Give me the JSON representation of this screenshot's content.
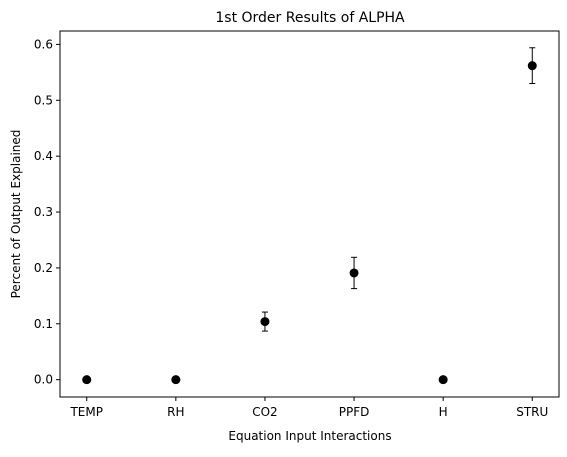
{
  "chart_data": {
    "type": "scatter",
    "title": "1st Order Results of ALPHA",
    "xlabel": "Equation Input Interactions",
    "ylabel": "Percent of Output Explained",
    "categories": [
      "TEMP",
      "RH",
      "CO2",
      "PPFD",
      "H",
      "STRU"
    ],
    "values": [
      0.0,
      0.0,
      0.104,
      0.191,
      0.0,
      0.562
    ],
    "error_low": [
      0.0,
      0.0,
      0.087,
      0.163,
      0.0,
      0.53
    ],
    "error_high": [
      0.0,
      0.0,
      0.121,
      0.219,
      0.0,
      0.594
    ],
    "ylim": [
      -0.031,
      0.624
    ],
    "yticks": [
      0.0,
      0.1,
      0.2,
      0.3,
      0.4,
      0.5,
      0.6
    ],
    "ytick_labels": [
      "0.0",
      "0.1",
      "0.2",
      "0.3",
      "0.4",
      "0.5",
      "0.6"
    ],
    "grid": false,
    "marker_color": "#000000"
  }
}
